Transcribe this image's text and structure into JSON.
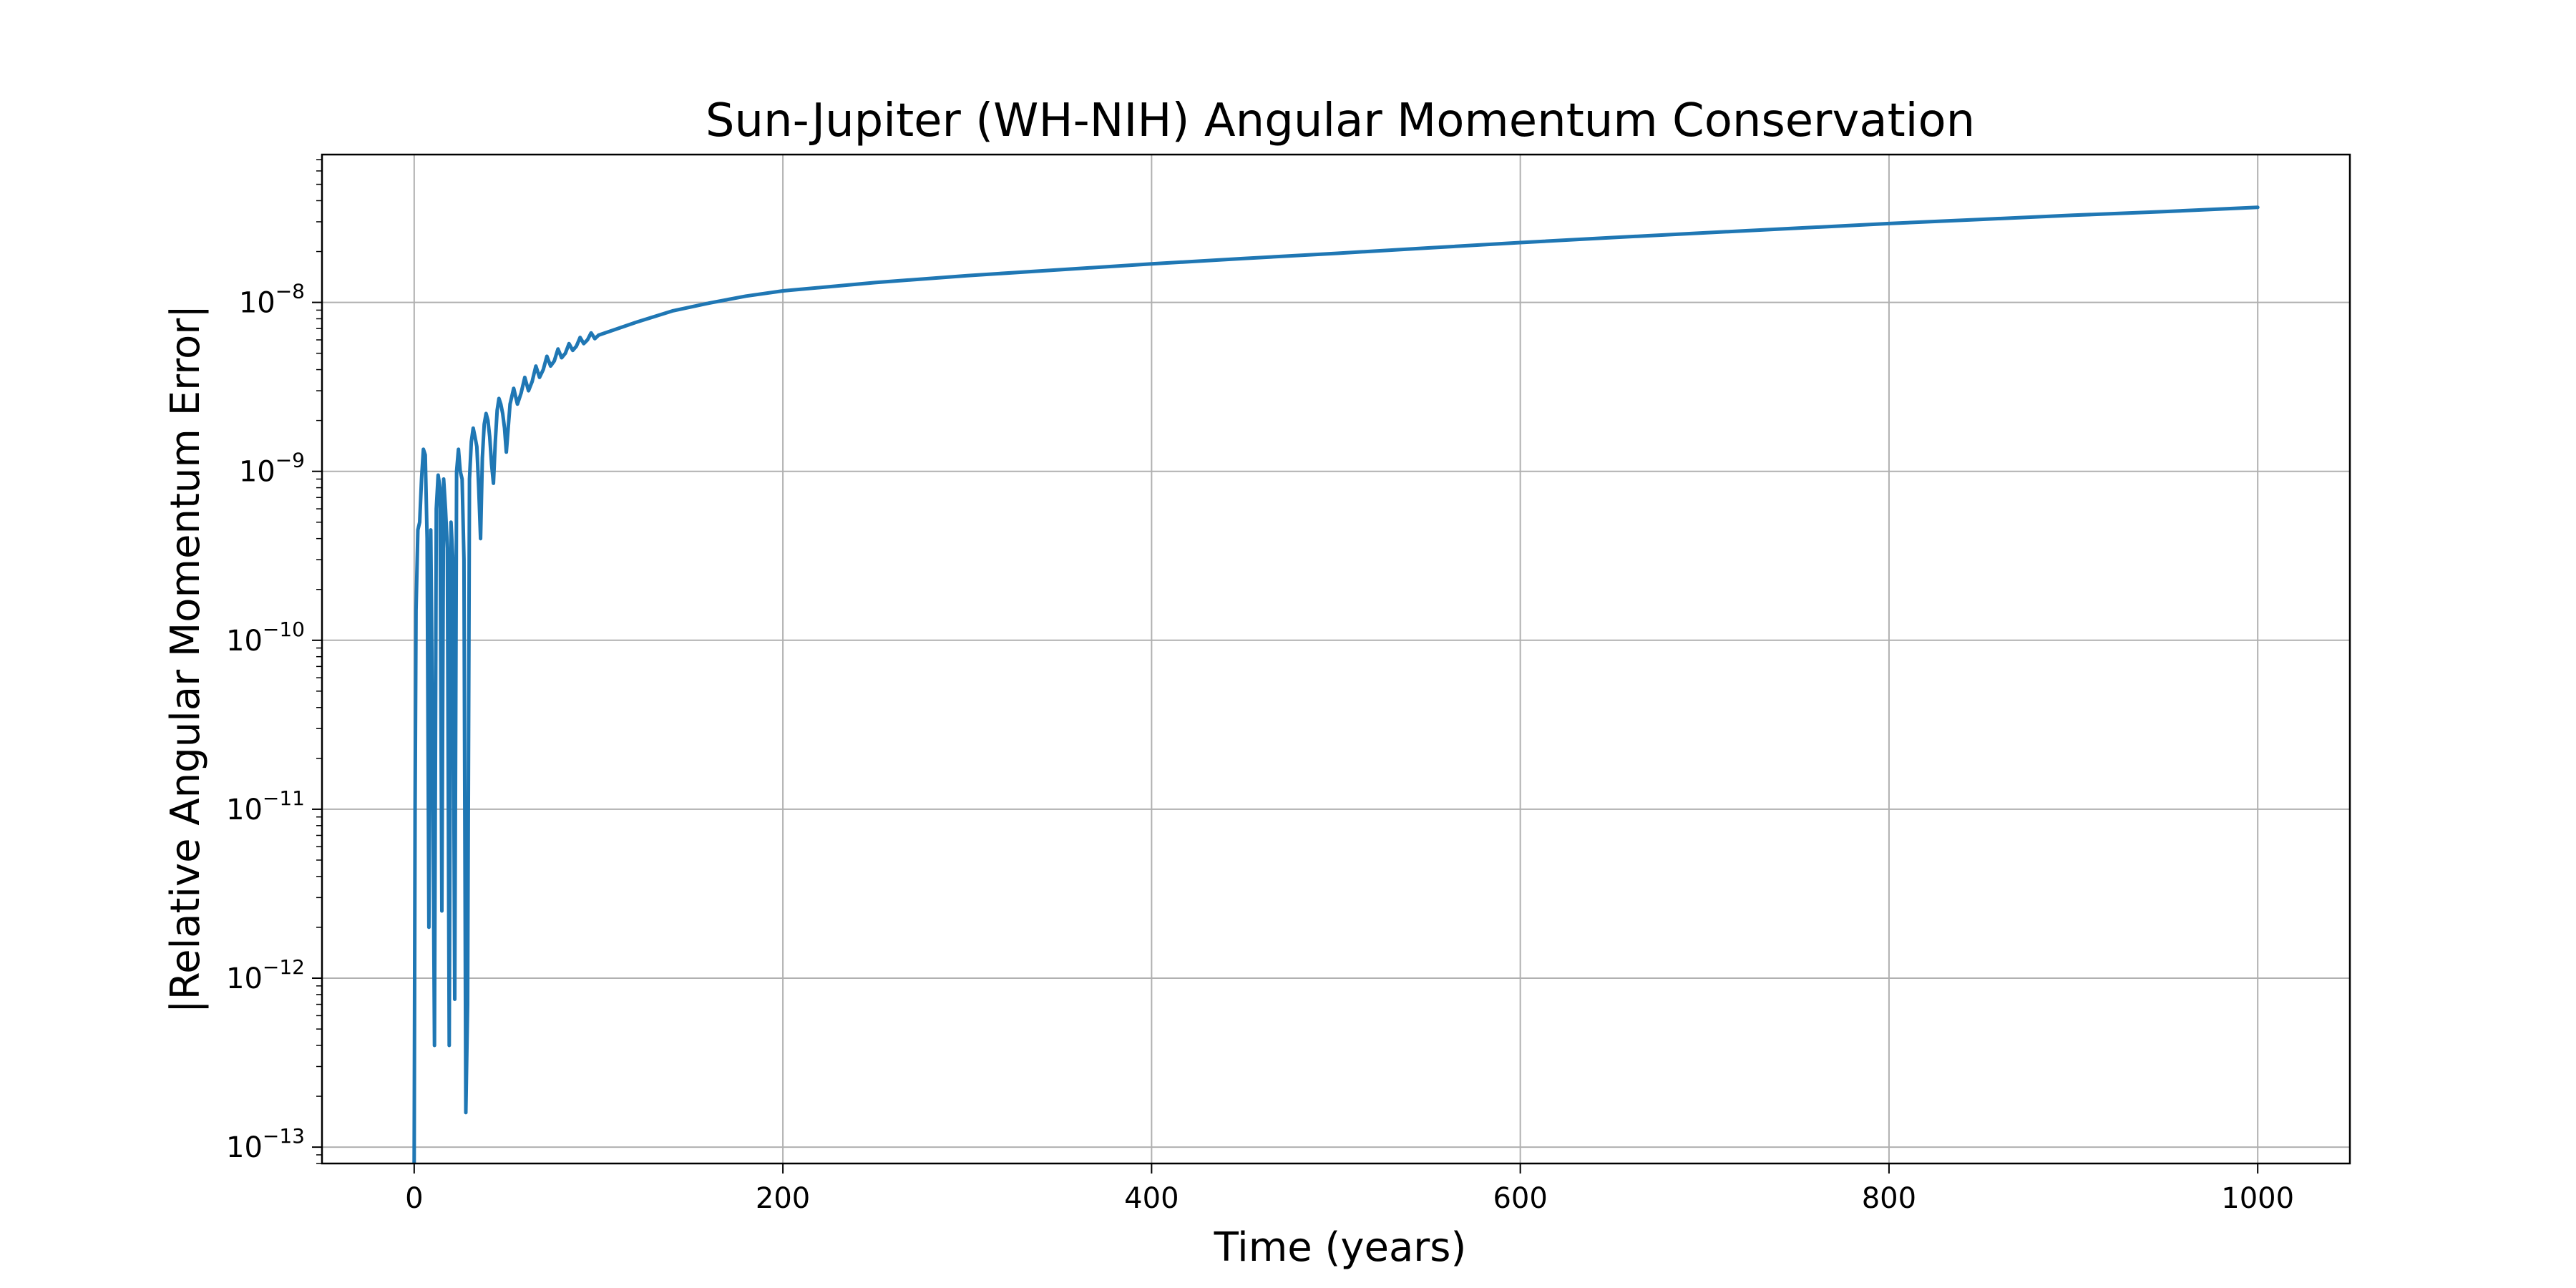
{
  "chart_data": {
    "type": "line",
    "title": "Sun-Jupiter (WH-NIH) Angular Momentum Conservation",
    "xlabel": "Time (years)",
    "ylabel": "|Relative Angular Momentum Error|",
    "xlim": [
      -50,
      1050
    ],
    "ylim": [
      8e-14,
      7.5e-08
    ],
    "yscale": "log",
    "grid": true,
    "line_color": "#1f77b4",
    "x_ticks": [
      0,
      200,
      400,
      600,
      800,
      1000
    ],
    "x_tick_labels": [
      "0",
      "200",
      "400",
      "600",
      "800",
      "1000"
    ],
    "y_ticks": [
      1e-13,
      1e-12,
      1e-11,
      1e-10,
      1e-09,
      1e-08
    ],
    "y_tick_labels": [
      {
        "base": "10",
        "exp": "−13"
      },
      {
        "base": "10",
        "exp": "−12"
      },
      {
        "base": "10",
        "exp": "−11"
      },
      {
        "base": "10",
        "exp": "−10"
      },
      {
        "base": "10",
        "exp": "−9"
      },
      {
        "base": "10",
        "exp": "−8"
      }
    ],
    "series": [
      {
        "x": [
          0,
          0.5,
          1,
          2,
          3,
          4,
          5,
          6,
          7,
          8,
          9,
          10,
          11,
          12,
          13,
          14,
          15,
          16,
          17,
          18,
          19,
          20,
          21,
          22,
          23,
          24,
          25,
          26,
          27,
          28,
          29,
          30,
          31,
          32,
          33,
          34,
          35,
          36,
          37,
          38,
          39,
          40,
          41,
          42,
          43,
          44,
          45,
          46,
          47,
          48,
          49,
          50,
          52,
          54,
          56,
          58,
          60,
          62,
          64,
          66,
          68,
          70,
          72,
          74,
          76,
          78,
          80,
          82,
          84,
          86,
          88,
          90,
          92,
          94,
          96,
          98,
          100,
          120,
          140,
          160,
          180,
          200,
          250,
          300,
          350,
          400,
          450,
          500,
          550,
          600,
          650,
          700,
          750,
          800,
          850,
          900,
          950,
          1000
        ],
        "y": [
          8e-14,
          1e-11,
          1.5e-10,
          4.5e-10,
          5e-10,
          9e-10,
          1.35e-09,
          1.25e-09,
          4e-10,
          2e-12,
          4.5e-10,
          2.5e-11,
          4e-13,
          6e-10,
          9.5e-10,
          8e-10,
          2.5e-12,
          9e-10,
          6e-10,
          3.5e-10,
          4e-13,
          5e-10,
          3e-10,
          7.5e-13,
          1e-09,
          1.35e-09,
          1e-09,
          9e-10,
          3e-10,
          1.6e-13,
          7e-13,
          9e-10,
          1.5e-09,
          1.8e-09,
          1.6e-09,
          1.4e-09,
          8e-10,
          4e-10,
          1.2e-09,
          1.9e-09,
          2.2e-09,
          2e-09,
          1.6e-09,
          1.1e-09,
          8.5e-10,
          1.5e-09,
          2.3e-09,
          2.7e-09,
          2.5e-09,
          2.2e-09,
          1.8e-09,
          1.3e-09,
          2.5e-09,
          3.1e-09,
          2.5e-09,
          2.9e-09,
          3.6e-09,
          3e-09,
          3.4e-09,
          4.2e-09,
          3.6e-09,
          4e-09,
          4.8e-09,
          4.2e-09,
          4.5e-09,
          5.3e-09,
          4.7e-09,
          5e-09,
          5.7e-09,
          5.2e-09,
          5.5e-09,
          6.2e-09,
          5.7e-09,
          6e-09,
          6.6e-09,
          6.1e-09,
          6.4e-09,
          7.6e-09,
          8.9e-09,
          9.9e-09,
          1.09e-08,
          1.17e-08,
          1.31e-08,
          1.44e-08,
          1.56e-08,
          1.69e-08,
          1.82e-08,
          1.95e-08,
          2.1e-08,
          2.26e-08,
          2.42e-08,
          2.58e-08,
          2.75e-08,
          2.93e-08,
          3.1e-08,
          3.28e-08,
          3.45e-08,
          3.65e-08
        ]
      }
    ]
  }
}
